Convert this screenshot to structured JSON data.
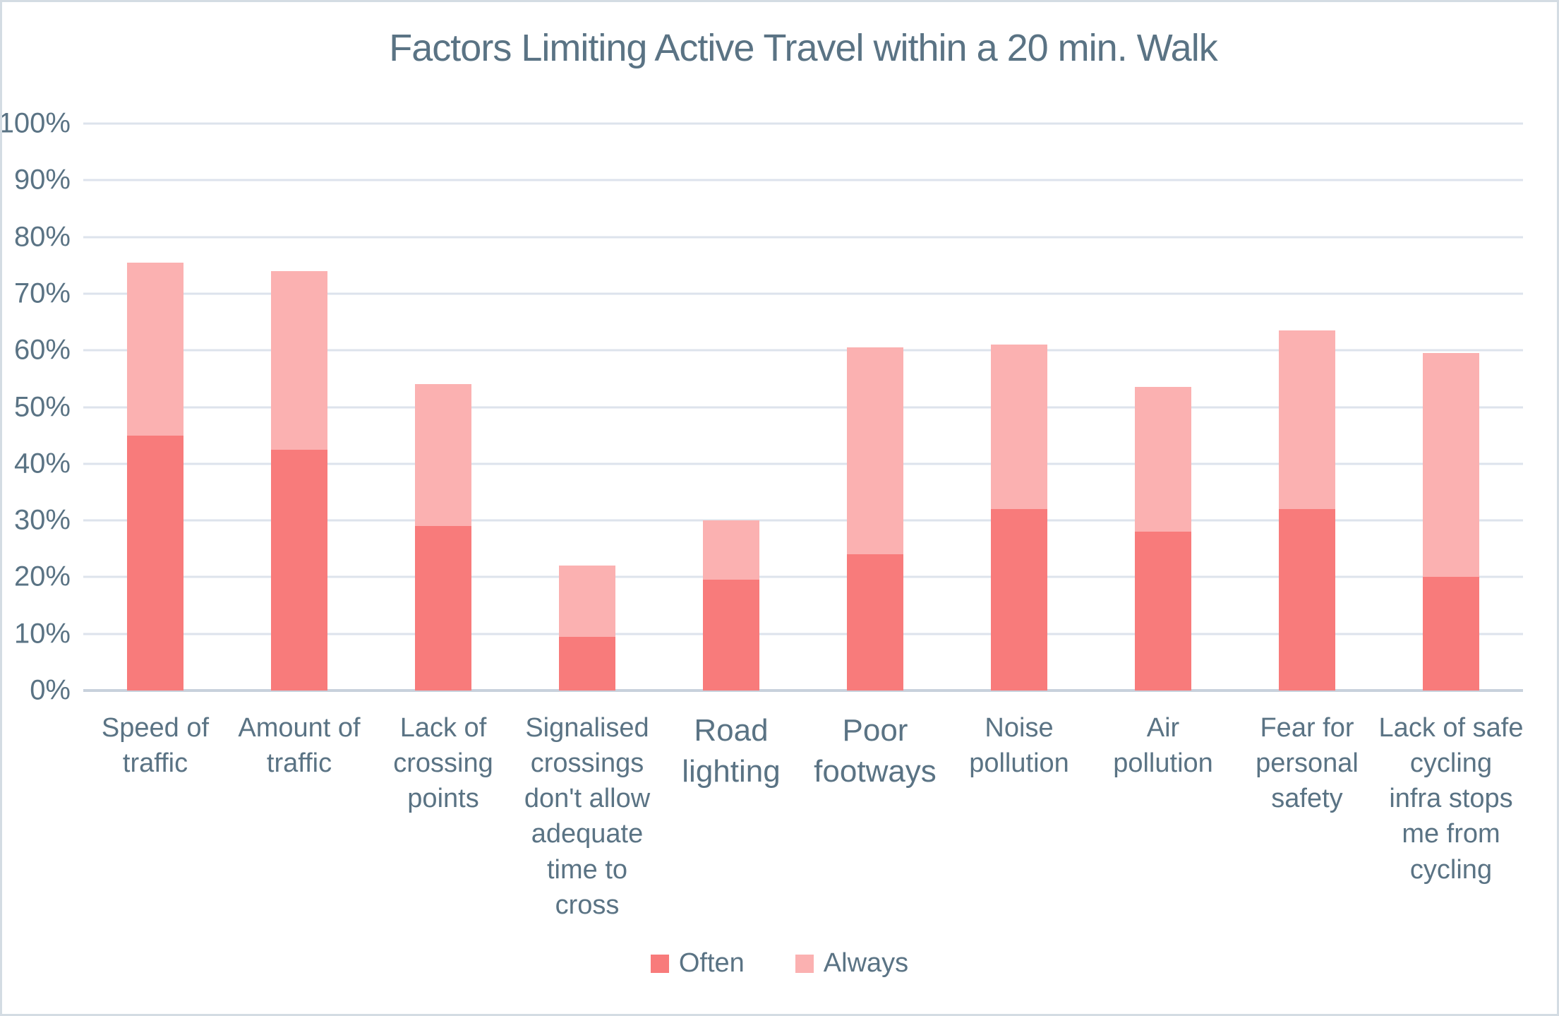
{
  "title": "Factors Limiting Active Travel within a 20 min. Walk",
  "colors": {
    "often": "#f87b7b",
    "always": "#fbb1b1",
    "text": "#5a7384",
    "gridline": "#dde3ec",
    "axis_line": "#c8d1dc",
    "border": "#d4dce3",
    "background": "#ffffff"
  },
  "y_axis": {
    "unit": "%",
    "min": 0,
    "max": 100,
    "step": 10,
    "tick_labels": [
      "100%",
      "90%",
      "80%",
      "70%",
      "60%",
      "50%",
      "40%",
      "30%",
      "20%",
      "10%",
      "0%"
    ]
  },
  "legend": {
    "position": "bottom",
    "items": [
      {
        "label": "Often",
        "color_key": "often"
      },
      {
        "label": "Always",
        "color_key": "always"
      }
    ]
  },
  "chart_data": {
    "type": "bar",
    "stacked": true,
    "title": "Factors Limiting Active Travel within a 20 min. Walk",
    "xlabel": "",
    "ylabel": "",
    "ylim": [
      0,
      100
    ],
    "grid": true,
    "legend_position": "bottom",
    "categories": [
      "Speed of traffic",
      "Amount of traffic",
      "Lack of crossing points",
      "Signalised crossings don't allow adequate time to cross",
      "Road lighting",
      "Poor footways",
      "Noise pollution",
      "Air pollution",
      "Fear for personal safety",
      "Lack of safe cycling infra stops me from cycling"
    ],
    "display_labels": [
      "Speed of\ntraffic",
      "Amount of\ntraffic",
      "Lack of\ncrossing\npoints",
      "Signalised\ncrossings\ndon't allow\nadequate\ntime to\ncross",
      "Road\nlighting",
      "Poor\nfootways",
      "Noise\npollution",
      "Air\npollution",
      "Fear for\npersonal\nsafety",
      "Lack of safe\ncycling\ninfra stops\nme from\ncycling"
    ],
    "emphasized_category_indexes": [
      4,
      5
    ],
    "series": [
      {
        "name": "Often",
        "values": [
          45,
          42.5,
          29,
          9.5,
          19.5,
          24,
          32,
          28,
          32,
          20
        ]
      },
      {
        "name": "Always",
        "values": [
          30.5,
          31.5,
          25,
          12.5,
          10.5,
          36.5,
          29,
          25.5,
          31.5,
          39.5
        ]
      }
    ],
    "stack_totals": [
      75.5,
      74,
      54,
      22,
      30,
      60.5,
      61,
      53.5,
      63.5,
      59.5
    ]
  }
}
